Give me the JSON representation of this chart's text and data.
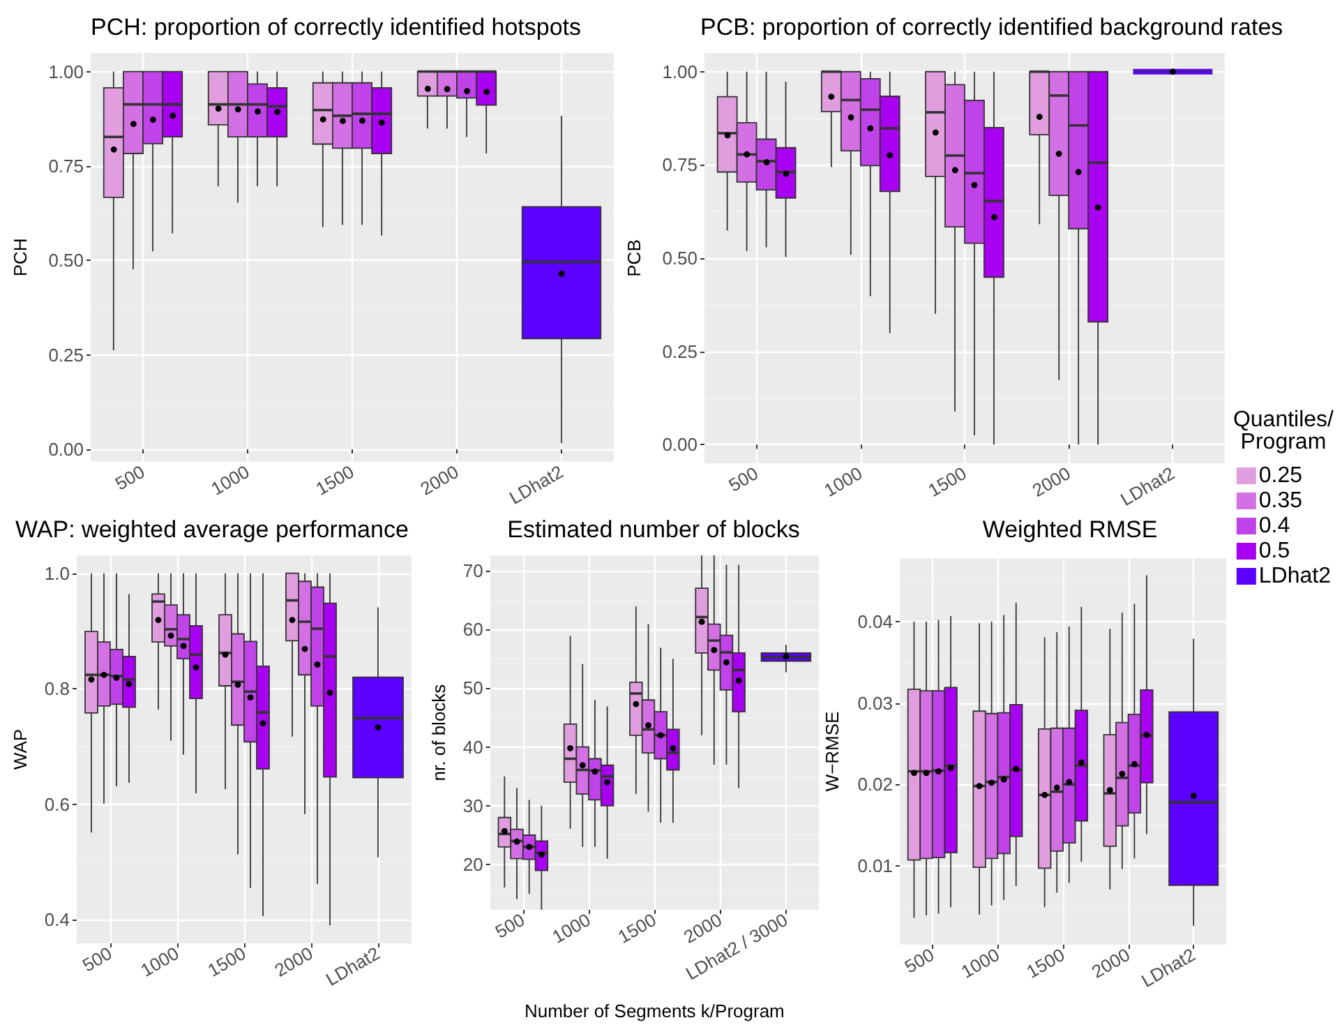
{
  "chart_data": [
    {
      "type": "box",
      "title": "PCH: proportion of correctly identified hotspots",
      "ylabel": "PCH",
      "categories": [
        "500",
        "1000",
        "1500",
        "2000",
        "LDhat2"
      ],
      "ylim": [
        -0.033,
        1.049
      ],
      "yticks": [
        {
          "value": 0,
          "label": "0.00"
        },
        {
          "value": 0.25,
          "label": "0.25"
        },
        {
          "value": 0.5,
          "label": "0.50"
        },
        {
          "value": 0.75,
          "label": "0.75"
        },
        {
          "value": 1,
          "label": "1.00"
        }
      ],
      "grid": true,
      "series": [
        {
          "color": "#e09edf",
          "boxes": [
            {
              "low": 0.262,
              "q1": 0.667,
              "median": 0.827,
              "q3": 0.957,
              "high": 1,
              "mean": 0.797
            },
            {
              "low": 0.696,
              "q1": 0.859,
              "median": 0.913,
              "q3": 1,
              "high": 1,
              "mean": 0.905
            },
            {
              "low": 0.588,
              "q1": 0.808,
              "median": 0.898,
              "q3": 0.97,
              "high": 1,
              "mean": 0.877
            },
            {
              "low": 0.849,
              "q1": 0.935,
              "median": 1,
              "q3": 1,
              "high": 1,
              "mean": 0.958
            },
            null
          ]
        },
        {
          "color": "#d370e3",
          "boxes": [
            {
              "low": 0.477,
              "q1": 0.783,
              "median": 0.913,
              "q3": 1,
              "high": 1,
              "mean": 0.865
            },
            {
              "low": 0.653,
              "q1": 0.827,
              "median": 0.913,
              "q3": 1,
              "high": 1,
              "mean": 0.903
            },
            {
              "low": 0.594,
              "q1": 0.797,
              "median": 0.883,
              "q3": 0.97,
              "high": 1,
              "mean": 0.873
            },
            {
              "low": 0.849,
              "q1": 0.935,
              "median": 1,
              "q3": 1,
              "high": 1,
              "mean": 0.956
            },
            null
          ]
        },
        {
          "color": "#c043ea",
          "boxes": [
            {
              "low": 0.524,
              "q1": 0.809,
              "median": 0.913,
              "q3": 1,
              "high": 1,
              "mean": 0.875
            },
            {
              "low": 0.696,
              "q1": 0.827,
              "median": 0.913,
              "q3": 0.967,
              "high": 1,
              "mean": 0.898
            },
            {
              "low": 0.594,
              "q1": 0.797,
              "median": 0.888,
              "q3": 0.97,
              "high": 1,
              "mean": 0.873
            },
            {
              "low": 0.827,
              "q1": 0.93,
              "median": 1,
              "q3": 1,
              "high": 1,
              "mean": 0.952
            },
            null
          ]
        },
        {
          "color": "#a800f0",
          "boxes": [
            {
              "low": 0.572,
              "q1": 0.827,
              "median": 0.913,
              "q3": 1,
              "high": 1,
              "mean": 0.887
            },
            {
              "low": 0.696,
              "q1": 0.827,
              "median": 0.908,
              "q3": 0.957,
              "high": 1,
              "mean": 0.897
            },
            {
              "low": 0.566,
              "q1": 0.783,
              "median": 0.888,
              "q3": 0.957,
              "high": 1,
              "mean": 0.867
            },
            {
              "low": 0.783,
              "q1": 0.911,
              "median": 1,
              "q3": 1,
              "high": 1,
              "mean": 0.95
            },
            null
          ]
        },
        {
          "color": "#5c00ff",
          "boxes": [
            null,
            null,
            null,
            null,
            {
              "low": 0.016,
              "q1": 0.293,
              "median": 0.496,
              "q3": 0.642,
              "high": 0.883,
              "mean": 0.465
            }
          ]
        }
      ]
    },
    {
      "type": "box",
      "title": "PCB: proportion of correctly identified background rates",
      "ylabel": "PCB",
      "categories": [
        "500",
        "1000",
        "1500",
        "2000",
        "LDhat2"
      ],
      "ylim": [
        -0.05,
        1.05
      ],
      "yticks": [
        {
          "value": 0,
          "label": "0.00"
        },
        {
          "value": 0.25,
          "label": "0.25"
        },
        {
          "value": 0.5,
          "label": "0.50"
        },
        {
          "value": 0.75,
          "label": "0.75"
        },
        {
          "value": 1,
          "label": "1.00"
        }
      ],
      "grid": true,
      "legend": "bottom right",
      "legend_title": "Quantiles/\nProgram",
      "series": [
        {
          "name": "0.25",
          "color": "#e09edf",
          "boxes": [
            {
              "low": 0.574,
              "q1": 0.731,
              "median": 0.835,
              "q3": 0.933,
              "high": 1,
              "mean": 0.833
            },
            {
              "low": 0.744,
              "q1": 0.893,
              "median": 1,
              "q3": 1,
              "high": 1,
              "mean": 0.933
            },
            {
              "low": 0.351,
              "q1": 0.719,
              "median": 0.891,
              "q3": 1,
              "high": 1,
              "mean": 0.84
            },
            {
              "low": 0.591,
              "q1": 0.831,
              "median": 1,
              "q3": 1,
              "high": 1,
              "mean": 0.879
            },
            null
          ]
        },
        {
          "name": "0.35",
          "color": "#d370e3",
          "boxes": [
            {
              "low": 0.519,
              "q1": 0.704,
              "median": 0.778,
              "q3": 0.863,
              "high": 1,
              "mean": 0.781
            },
            {
              "low": 0.509,
              "q1": 0.788,
              "median": 0.924,
              "q3": 1,
              "high": 1,
              "mean": 0.88
            },
            {
              "low": 0.089,
              "q1": 0.584,
              "median": 0.775,
              "q3": 0.965,
              "high": 1,
              "mean": 0.739
            },
            {
              "low": 0.173,
              "q1": 0.668,
              "median": 0.936,
              "q3": 1,
              "high": 1,
              "mean": 0.78
            },
            null
          ]
        },
        {
          "name": "0.4",
          "color": "#c043ea",
          "boxes": [
            {
              "low": 0.529,
              "q1": 0.683,
              "median": 0.76,
              "q3": 0.819,
              "high": 1,
              "mean": 0.761
            },
            {
              "low": 0.398,
              "q1": 0.748,
              "median": 0.898,
              "q3": 0.981,
              "high": 1,
              "mean": 0.848
            },
            {
              "low": 0.025,
              "q1": 0.54,
              "median": 0.728,
              "q3": 0.923,
              "high": 1,
              "mean": 0.696
            },
            {
              "low": 0,
              "q1": 0.579,
              "median": 0.856,
              "q3": 1,
              "high": 1,
              "mean": 0.731
            },
            null
          ]
        },
        {
          "name": "0.5",
          "color": "#a800f0",
          "boxes": [
            {
              "low": 0.503,
              "q1": 0.661,
              "median": 0.731,
              "q3": 0.796,
              "high": 0.973,
              "mean": 0.73
            },
            {
              "low": 0.299,
              "q1": 0.679,
              "median": 0.848,
              "q3": 0.934,
              "high": 1,
              "mean": 0.776
            },
            {
              "low": 0,
              "q1": 0.449,
              "median": 0.653,
              "q3": 0.85,
              "high": 1,
              "mean": 0.613
            },
            {
              "low": 0,
              "q1": 0.329,
              "median": 0.756,
              "q3": 1,
              "high": 1,
              "mean": 0.636
            },
            null
          ]
        },
        {
          "name": "LDhat2",
          "color": "#5c00ff",
          "boxes": [
            null,
            null,
            null,
            null,
            {
              "low": 1,
              "q1": 1,
              "median": 1,
              "q3": 1,
              "high": 1,
              "mean": 1
            }
          ]
        }
      ]
    },
    {
      "type": "box",
      "title": "WAP: weighted average performance",
      "ylabel": "WAP",
      "categories": [
        "500",
        "1000",
        "1500",
        "2000",
        "LDhat2"
      ],
      "ylim": [
        0.359,
        1.031
      ],
      "yticks": [
        {
          "value": 0.4,
          "label": "0.4"
        },
        {
          "value": 0.6,
          "label": "0.6"
        },
        {
          "value": 0.8,
          "label": "0.8"
        },
        {
          "value": 1,
          "label": "1.0"
        }
      ],
      "grid": true,
      "series": [
        {
          "color": "#e09edf",
          "boxes": [
            {
              "low": 0.551,
              "q1": 0.758,
              "median": 0.824,
              "q3": 0.899,
              "high": 1,
              "mean": 0.816
            },
            {
              "low": 0.764,
              "q1": 0.881,
              "median": 0.951,
              "q3": 0.964,
              "high": 1,
              "mean": 0.919
            },
            {
              "low": 0.626,
              "q1": 0.805,
              "median": 0.862,
              "q3": 0.928,
              "high": 1,
              "mean": 0.859
            },
            {
              "low": 0.717,
              "q1": 0.883,
              "median": 0.953,
              "q3": 1,
              "high": 1,
              "mean": 0.919
            },
            null
          ]
        },
        {
          "color": "#d370e3",
          "boxes": [
            {
              "low": 0.601,
              "q1": 0.77,
              "median": 0.824,
              "q3": 0.881,
              "high": 1,
              "mean": 0.824
            },
            {
              "low": 0.71,
              "q1": 0.874,
              "median": 0.903,
              "q3": 0.945,
              "high": 1,
              "mean": 0.892
            },
            {
              "low": 0.513,
              "q1": 0.737,
              "median": 0.812,
              "q3": 0.895,
              "high": 1,
              "mean": 0.807
            },
            {
              "low": 0.583,
              "q1": 0.824,
              "median": 0.916,
              "q3": 0.986,
              "high": 1,
              "mean": 0.869
            },
            null
          ]
        },
        {
          "color": "#c043ea",
          "boxes": [
            {
              "low": 0.631,
              "q1": 0.773,
              "median": 0.822,
              "q3": 0.868,
              "high": 1,
              "mean": 0.819
            },
            {
              "low": 0.686,
              "q1": 0.852,
              "median": 0.886,
              "q3": 0.928,
              "high": 1,
              "mean": 0.874
            },
            {
              "low": 0.455,
              "q1": 0.708,
              "median": 0.795,
              "q3": 0.882,
              "high": 1,
              "mean": 0.785
            },
            {
              "low": 0.462,
              "q1": 0.77,
              "median": 0.904,
              "q3": 0.976,
              "high": 1,
              "mean": 0.842
            },
            null
          ]
        },
        {
          "color": "#a800f0",
          "boxes": [
            {
              "low": 0.637,
              "q1": 0.768,
              "median": 0.816,
              "q3": 0.856,
              "high": 0.964,
              "mean": 0.808
            },
            {
              "low": 0.619,
              "q1": 0.783,
              "median": 0.859,
              "q3": 0.909,
              "high": 1,
              "mean": 0.837
            },
            {
              "low": 0.406,
              "q1": 0.661,
              "median": 0.759,
              "q3": 0.839,
              "high": 1,
              "mean": 0.74
            },
            {
              "low": 0.39,
              "q1": 0.647,
              "median": 0.856,
              "q3": 0.948,
              "high": 1,
              "mean": 0.793
            },
            null
          ]
        },
        {
          "color": "#5c00ff",
          "boxes": [
            null,
            null,
            null,
            null,
            {
              "low": 0.508,
              "q1": 0.646,
              "median": 0.749,
              "q3": 0.82,
              "high": 0.941,
              "mean": 0.733
            }
          ]
        }
      ]
    },
    {
      "type": "box",
      "title": "Estimated number of blocks",
      "xlabel": "Number of Segments k/Program",
      "ylabel": "nr. of blocks",
      "categories": [
        "500",
        "1000",
        "1500",
        "2000",
        "LDhat2 / 3000"
      ],
      "ylim": [
        12.3,
        72.6
      ],
      "yticks": [
        20,
        30,
        40,
        50,
        60,
        70
      ],
      "grid": true,
      "series": [
        {
          "color": "#e09edf",
          "boxes": [
            {
              "low": 16.1,
              "q1": 23,
              "median": 25.2,
              "q3": 28,
              "high": 35,
              "mean": 25.7
            },
            {
              "low": 26.1,
              "q1": 34,
              "median": 38,
              "q3": 43.9,
              "high": 58.9,
              "mean": 39.8
            },
            {
              "low": 32,
              "q1": 42,
              "median": 49.1,
              "q3": 51,
              "high": 63.9,
              "mean": 47.3
            },
            {
              "low": 42,
              "q1": 56,
              "median": 62.1,
              "q3": 67,
              "high": 72.6,
              "mean": 61.3
            },
            null
          ]
        },
        {
          "color": "#d370e3",
          "boxes": [
            {
              "low": 14.1,
              "q1": 21,
              "median": 24,
              "q3": 26,
              "high": 33,
              "mean": 23.9
            },
            {
              "low": 23,
              "q1": 32,
              "median": 36.1,
              "q3": 40,
              "high": 54.1,
              "mean": 36.9
            },
            {
              "low": 29,
              "q1": 39,
              "median": 43,
              "q3": 48,
              "high": 60.9,
              "mean": 43.7
            },
            {
              "low": 37,
              "q1": 53.1,
              "median": 58.1,
              "q3": 60.9,
              "high": 72.6,
              "mean": 56.5
            },
            null
          ]
        },
        {
          "color": "#c043ea",
          "boxes": [
            {
              "low": 15,
              "q1": 20.9,
              "median": 23,
              "q3": 25,
              "high": 31,
              "mean": 23
            },
            {
              "low": 23,
              "q1": 31,
              "median": 36,
              "q3": 38,
              "high": 48,
              "mean": 35.8
            },
            {
              "low": 27.1,
              "q1": 38,
              "median": 42,
              "q3": 46,
              "high": 56.9,
              "mean": 42
            },
            {
              "low": 37,
              "q1": 49.7,
              "median": 56.1,
              "q3": 59,
              "high": 71,
              "mean": 54.4
            },
            null
          ]
        },
        {
          "color": "#a800f0",
          "boxes": [
            {
              "low": 12.3,
              "q1": 19,
              "median": 22,
              "q3": 24,
              "high": 30,
              "mean": 21.7
            },
            {
              "low": 21,
              "q1": 30,
              "median": 35,
              "q3": 36.9,
              "high": 46.9,
              "mean": 34
            },
            {
              "low": 27.1,
              "q1": 36.1,
              "median": 39,
              "q3": 43,
              "high": 55,
              "mean": 39.8
            },
            {
              "low": 33,
              "q1": 46,
              "median": 53.1,
              "q3": 56,
              "high": 71,
              "mean": 51.3
            },
            null
          ]
        },
        {
          "color": "#5c00ff",
          "boxes": [
            null,
            null,
            null,
            null,
            {
              "low": 52.7,
              "q1": 54.6,
              "median": 55.3,
              "q3": 56,
              "high": 57.4,
              "mean": 55.4
            }
          ]
        }
      ]
    },
    {
      "type": "box",
      "title": "Weighted RMSE",
      "ylabel": "W−RMSE",
      "categories": [
        "500",
        "1000",
        "1500",
        "2000",
        "LDhat2"
      ],
      "ylim": [
        0.0003,
        0.0478
      ],
      "yticks": [
        0.01,
        0.02,
        0.03,
        0.04
      ],
      "grid": true,
      "series": [
        {
          "color": "#e09edf",
          "boxes": [
            {
              "low": 0.0036,
              "q1": 0.0107,
              "median": 0.0216,
              "q3": 0.0317,
              "high": 0.04,
              "mean": 0.0214
            },
            {
              "low": 0.004,
              "q1": 0.0098,
              "median": 0.0198,
              "q3": 0.029,
              "high": 0.0398,
              "mean": 0.0198
            },
            {
              "low": 0.0049,
              "q1": 0.0097,
              "median": 0.0187,
              "q3": 0.0268,
              "high": 0.0381,
              "mean": 0.0187
            },
            {
              "low": 0.0071,
              "q1": 0.0124,
              "median": 0.0189,
              "q3": 0.0261,
              "high": 0.0391,
              "mean": 0.0193
            },
            null
          ]
        },
        {
          "color": "#d370e3",
          "boxes": [
            {
              "low": 0.0039,
              "q1": 0.0109,
              "median": 0.0216,
              "q3": 0.0315,
              "high": 0.04,
              "mean": 0.0214
            },
            {
              "low": 0.0051,
              "q1": 0.0109,
              "median": 0.0203,
              "q3": 0.0287,
              "high": 0.04,
              "mean": 0.0202
            },
            {
              "low": 0.0067,
              "q1": 0.0118,
              "median": 0.0191,
              "q3": 0.0269,
              "high": 0.0387,
              "mean": 0.0196
            },
            {
              "low": 0.0096,
              "q1": 0.0149,
              "median": 0.0208,
              "q3": 0.0276,
              "high": 0.0411,
              "mean": 0.0213
            },
            null
          ]
        },
        {
          "color": "#c043ea",
          "boxes": [
            {
              "low": 0.0041,
              "q1": 0.011,
              "median": 0.0217,
              "q3": 0.0315,
              "high": 0.0402,
              "mean": 0.0216
            },
            {
              "low": 0.0058,
              "q1": 0.0115,
              "median": 0.0209,
              "q3": 0.0288,
              "high": 0.0408,
              "mean": 0.0206
            },
            {
              "low": 0.0079,
              "q1": 0.0128,
              "median": 0.02,
              "q3": 0.0269,
              "high": 0.0394,
              "mean": 0.0203
            },
            {
              "low": 0.0109,
              "q1": 0.0165,
              "median": 0.0223,
              "q3": 0.0286,
              "high": 0.0422,
              "mean": 0.0225
            },
            null
          ]
        },
        {
          "color": "#a800f0",
          "boxes": [
            {
              "low": 0.0049,
              "q1": 0.0116,
              "median": 0.0223,
              "q3": 0.0319,
              "high": 0.0407,
              "mean": 0.022
            },
            {
              "low": 0.0075,
              "q1": 0.0136,
              "median": 0.0218,
              "q3": 0.0298,
              "high": 0.0423,
              "mean": 0.0219
            },
            {
              "low": 0.0105,
              "q1": 0.0155,
              "median": 0.0223,
              "q3": 0.0291,
              "high": 0.0418,
              "mean": 0.0227
            },
            {
              "low": 0.0139,
              "q1": 0.0202,
              "median": 0.026,
              "q3": 0.0316,
              "high": 0.0457,
              "mean": 0.0261
            },
            null
          ]
        },
        {
          "color": "#5c00ff",
          "boxes": [
            null,
            null,
            null,
            null,
            {
              "low": 0.0026,
              "q1": 0.0076,
              "median": 0.0178,
              "q3": 0.0289,
              "high": 0.0379,
              "mean": 0.0186
            }
          ]
        }
      ]
    }
  ]
}
